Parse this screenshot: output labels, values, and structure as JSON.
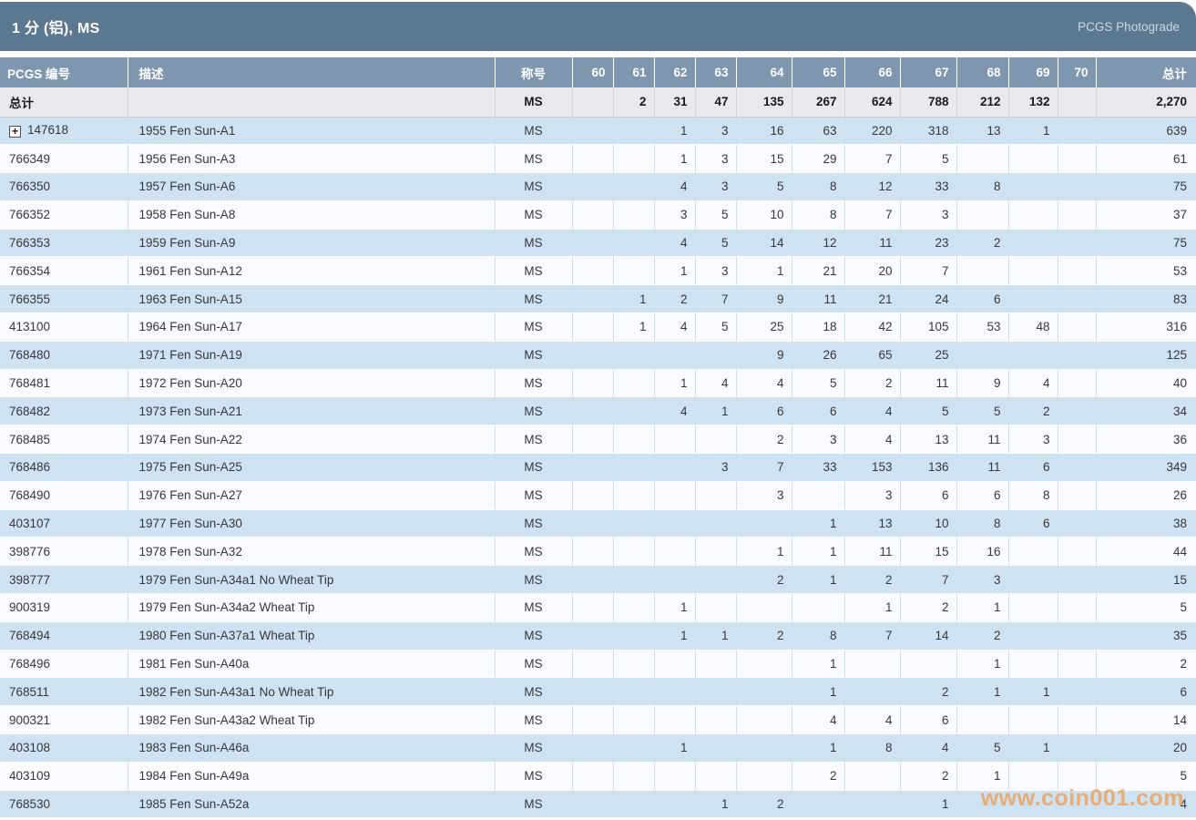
{
  "title_bar": {
    "title": "1 分 (铝), MS",
    "photograde_label": "PCGS Photograde"
  },
  "icons": {
    "expand": "+"
  },
  "colors": {
    "title_bar_bg": "#5c7891",
    "column_header_bg": "#7e97ae",
    "row_blue": "#cfe2f1",
    "row_white": "#f9fbfe",
    "total_row_bg": "#e9e9ed",
    "pcgs_link": "#b1714e",
    "watermark": "#eea25a"
  },
  "table": {
    "headers": {
      "pcgs_no": "PCGS 编号",
      "description": "描述",
      "designation": "称号",
      "grades": [
        "60",
        "61",
        "62",
        "63",
        "64",
        "65",
        "66",
        "67",
        "68",
        "69",
        "70"
      ],
      "total": "总计"
    },
    "total_row": {
      "label": "总计",
      "designation": "MS",
      "counts": [
        "",
        "2",
        "31",
        "47",
        "135",
        "267",
        "624",
        "788",
        "212",
        "132",
        ""
      ],
      "total": "2,270"
    },
    "rows": [
      {
        "pcgs_no": "147618",
        "expandable": true,
        "description": "1955 Fen Sun-A1",
        "designation": "MS",
        "counts": [
          "",
          "",
          "1",
          "3",
          "16",
          "63",
          "220",
          "318",
          "13",
          "1",
          ""
        ],
        "total": "639"
      },
      {
        "pcgs_no": "766349",
        "expandable": false,
        "description": "1956 Fen Sun-A3",
        "designation": "MS",
        "counts": [
          "",
          "",
          "1",
          "3",
          "15",
          "29",
          "7",
          "5",
          "",
          "",
          ""
        ],
        "total": "61"
      },
      {
        "pcgs_no": "766350",
        "expandable": false,
        "description": "1957 Fen Sun-A6",
        "designation": "MS",
        "counts": [
          "",
          "",
          "4",
          "3",
          "5",
          "8",
          "12",
          "33",
          "8",
          "",
          ""
        ],
        "total": "75"
      },
      {
        "pcgs_no": "766352",
        "expandable": false,
        "description": "1958 Fen Sun-A8",
        "designation": "MS",
        "counts": [
          "",
          "",
          "3",
          "5",
          "10",
          "8",
          "7",
          "3",
          "",
          "",
          ""
        ],
        "total": "37"
      },
      {
        "pcgs_no": "766353",
        "expandable": false,
        "description": "1959 Fen Sun-A9",
        "designation": "MS",
        "counts": [
          "",
          "",
          "4",
          "5",
          "14",
          "12",
          "11",
          "23",
          "2",
          "",
          ""
        ],
        "total": "75"
      },
      {
        "pcgs_no": "766354",
        "expandable": false,
        "description": "1961 Fen Sun-A12",
        "designation": "MS",
        "counts": [
          "",
          "",
          "1",
          "3",
          "1",
          "21",
          "20",
          "7",
          "",
          "",
          ""
        ],
        "total": "53"
      },
      {
        "pcgs_no": "766355",
        "expandable": false,
        "description": "1963 Fen Sun-A15",
        "designation": "MS",
        "counts": [
          "",
          "1",
          "2",
          "7",
          "9",
          "11",
          "21",
          "24",
          "6",
          "",
          ""
        ],
        "total": "83"
      },
      {
        "pcgs_no": "413100",
        "expandable": false,
        "description": "1964 Fen Sun-A17",
        "designation": "MS",
        "counts": [
          "",
          "1",
          "4",
          "5",
          "25",
          "18",
          "42",
          "105",
          "53",
          "48",
          ""
        ],
        "total": "316"
      },
      {
        "pcgs_no": "768480",
        "expandable": false,
        "description": "1971 Fen Sun-A19",
        "designation": "MS",
        "counts": [
          "",
          "",
          "",
          "",
          "9",
          "26",
          "65",
          "25",
          "",
          "",
          ""
        ],
        "total": "125"
      },
      {
        "pcgs_no": "768481",
        "expandable": false,
        "description": "1972 Fen Sun-A20",
        "designation": "MS",
        "counts": [
          "",
          "",
          "1",
          "4",
          "4",
          "5",
          "2",
          "11",
          "9",
          "4",
          ""
        ],
        "total": "40"
      },
      {
        "pcgs_no": "768482",
        "expandable": false,
        "description": "1973 Fen Sun-A21",
        "designation": "MS",
        "counts": [
          "",
          "",
          "4",
          "1",
          "6",
          "6",
          "4",
          "5",
          "5",
          "2",
          ""
        ],
        "total": "34"
      },
      {
        "pcgs_no": "768485",
        "expandable": false,
        "description": "1974 Fen Sun-A22",
        "designation": "MS",
        "counts": [
          "",
          "",
          "",
          "",
          "2",
          "3",
          "4",
          "13",
          "11",
          "3",
          ""
        ],
        "total": "36"
      },
      {
        "pcgs_no": "768486",
        "expandable": false,
        "description": "1975 Fen Sun-A25",
        "designation": "MS",
        "counts": [
          "",
          "",
          "",
          "3",
          "7",
          "33",
          "153",
          "136",
          "11",
          "6",
          ""
        ],
        "total": "349"
      },
      {
        "pcgs_no": "768490",
        "expandable": false,
        "description": "1976 Fen Sun-A27",
        "designation": "MS",
        "counts": [
          "",
          "",
          "",
          "",
          "3",
          "",
          "3",
          "6",
          "6",
          "8",
          ""
        ],
        "total": "26"
      },
      {
        "pcgs_no": "403107",
        "expandable": false,
        "description": "1977 Fen Sun-A30",
        "designation": "MS",
        "counts": [
          "",
          "",
          "",
          "",
          "",
          "1",
          "13",
          "10",
          "8",
          "6",
          ""
        ],
        "total": "38"
      },
      {
        "pcgs_no": "398776",
        "expandable": false,
        "description": "1978 Fen Sun-A32",
        "designation": "MS",
        "counts": [
          "",
          "",
          "",
          "",
          "1",
          "1",
          "11",
          "15",
          "16",
          "",
          ""
        ],
        "total": "44"
      },
      {
        "pcgs_no": "398777",
        "expandable": false,
        "description": "1979 Fen Sun-A34a1 No Wheat Tip",
        "designation": "MS",
        "counts": [
          "",
          "",
          "",
          "",
          "2",
          "1",
          "2",
          "7",
          "3",
          "",
          ""
        ],
        "total": "15"
      },
      {
        "pcgs_no": "900319",
        "expandable": false,
        "description": "1979 Fen Sun-A34a2 Wheat Tip",
        "designation": "MS",
        "counts": [
          "",
          "",
          "1",
          "",
          "",
          "",
          "1",
          "2",
          "1",
          "",
          ""
        ],
        "total": "5"
      },
      {
        "pcgs_no": "768494",
        "expandable": false,
        "description": "1980 Fen Sun-A37a1 Wheat Tip",
        "designation": "MS",
        "counts": [
          "",
          "",
          "1",
          "1",
          "2",
          "8",
          "7",
          "14",
          "2",
          "",
          ""
        ],
        "total": "35"
      },
      {
        "pcgs_no": "768496",
        "expandable": false,
        "description": "1981 Fen Sun-A40a",
        "designation": "MS",
        "counts": [
          "",
          "",
          "",
          "",
          "",
          "1",
          "",
          "",
          "1",
          "",
          ""
        ],
        "total": "2"
      },
      {
        "pcgs_no": "768511",
        "expandable": false,
        "description": "1982 Fen Sun-A43a1 No Wheat Tip",
        "designation": "MS",
        "counts": [
          "",
          "",
          "",
          "",
          "",
          "1",
          "",
          "2",
          "1",
          "1",
          ""
        ],
        "total": "6"
      },
      {
        "pcgs_no": "900321",
        "expandable": false,
        "description": "1982 Fen Sun-A43a2 Wheat Tip",
        "designation": "MS",
        "counts": [
          "",
          "",
          "",
          "",
          "",
          "4",
          "4",
          "6",
          "",
          "",
          ""
        ],
        "total": "14"
      },
      {
        "pcgs_no": "403108",
        "expandable": false,
        "description": "1983 Fen Sun-A46a",
        "designation": "MS",
        "counts": [
          "",
          "",
          "1",
          "",
          "",
          "1",
          "8",
          "4",
          "5",
          "1",
          ""
        ],
        "total": "20"
      },
      {
        "pcgs_no": "403109",
        "expandable": false,
        "description": "1984 Fen Sun-A49a",
        "designation": "MS",
        "counts": [
          "",
          "",
          "",
          "",
          "",
          "2",
          "",
          "2",
          "1",
          "",
          ""
        ],
        "total": "5"
      },
      {
        "pcgs_no": "768530",
        "expandable": false,
        "description": "1985 Fen Sun-A52a",
        "designation": "MS",
        "counts": [
          "",
          "",
          "",
          "1",
          "2",
          "",
          "",
          "1",
          "",
          "",
          ""
        ],
        "total": "4"
      }
    ]
  },
  "watermark": "www.coin001.com"
}
